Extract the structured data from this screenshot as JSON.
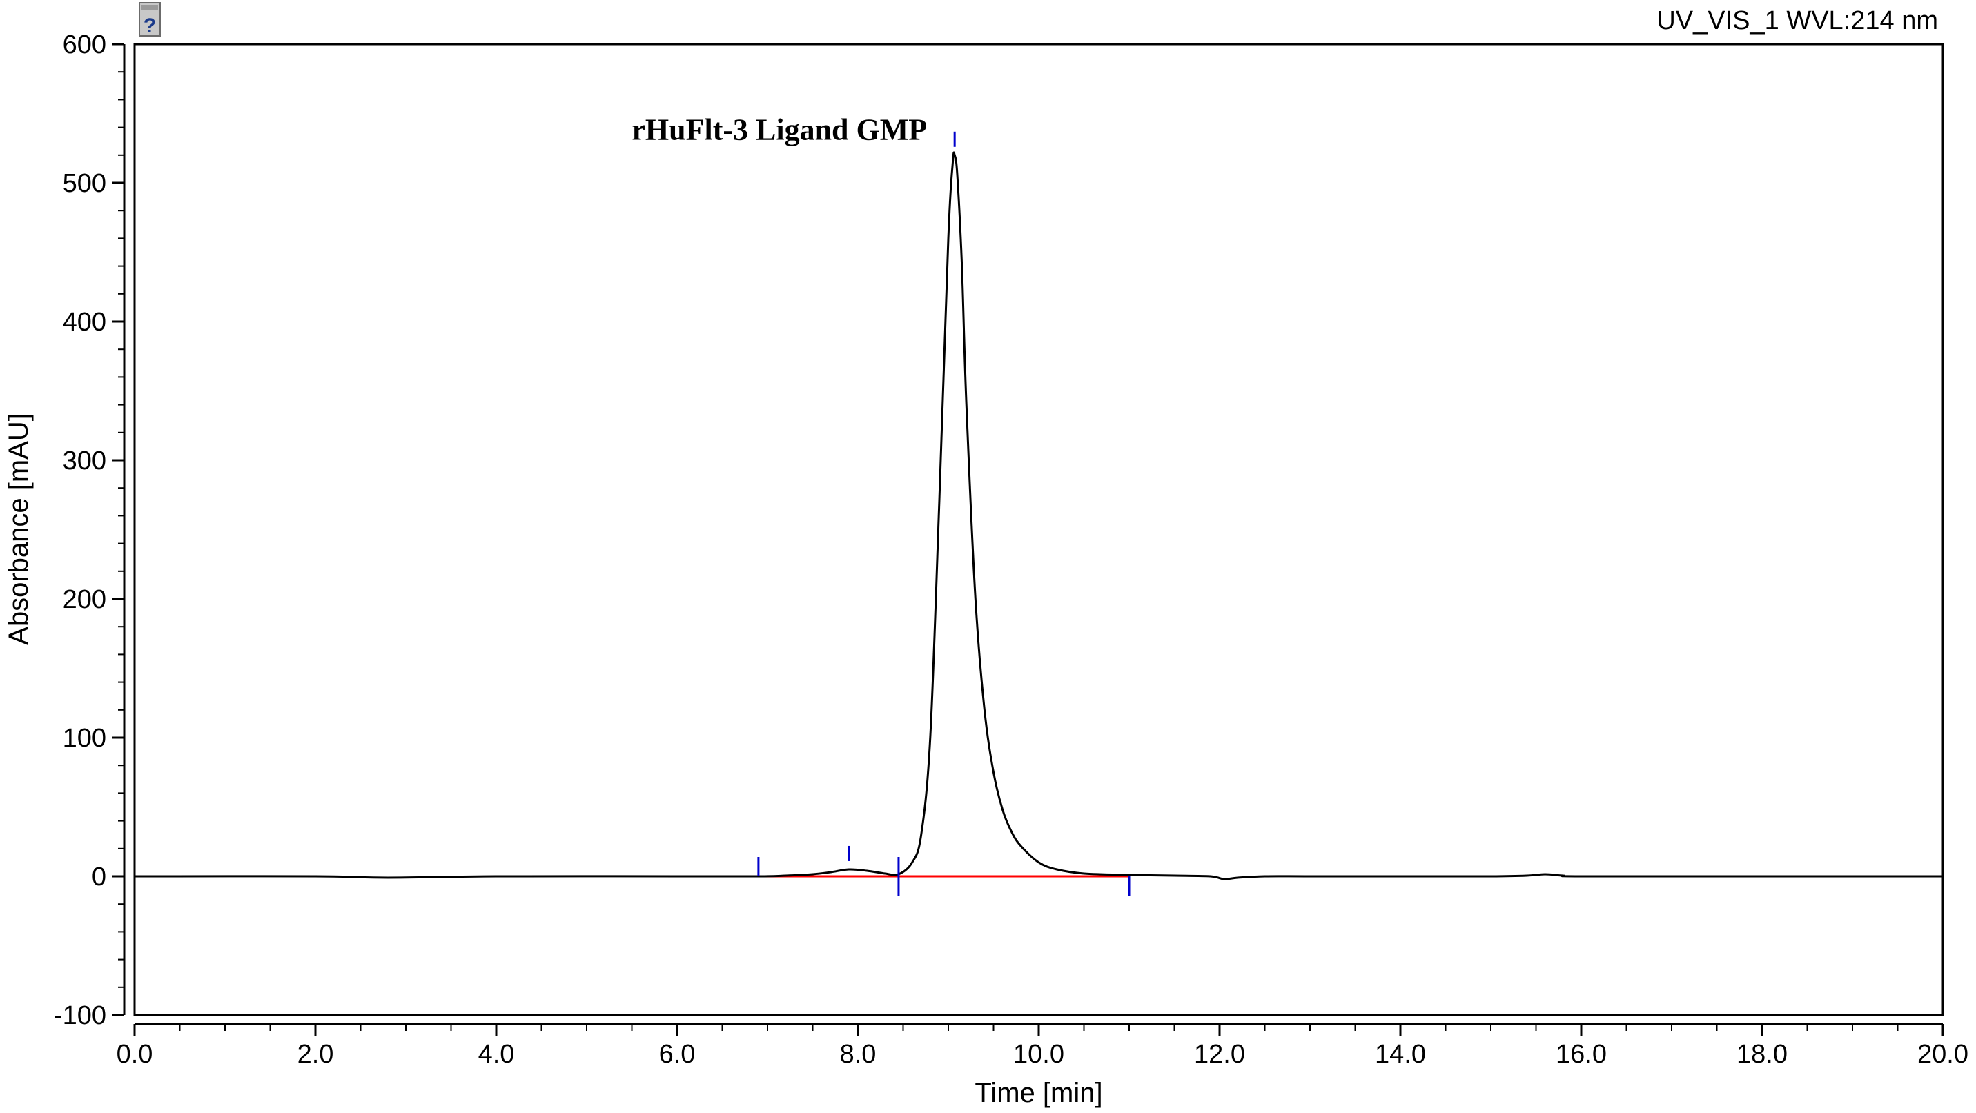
{
  "header": {
    "channel_label": "UV_VIS_1 WVL:214 nm",
    "help_icon": "help-icon"
  },
  "chart_data": {
    "type": "line",
    "title": "",
    "xlabel": "Time [min]",
    "ylabel": "Absorbance [mAU]",
    "xlim": [
      0.0,
      20.0
    ],
    "ylim": [
      -100,
      600
    ],
    "x_ticks": [
      "0.0",
      "2.0",
      "4.0",
      "6.0",
      "8.0",
      "10.0",
      "12.0",
      "14.0",
      "16.0",
      "18.0",
      "20.0"
    ],
    "y_ticks": [
      "-100",
      "0",
      "100",
      "200",
      "300",
      "400",
      "500",
      "600"
    ],
    "grid": false,
    "colors": {
      "trace": "#000000",
      "baseline": "#ff0000",
      "markers": "#0000cc"
    },
    "annotations": [
      {
        "text": "rHuFlt-3 Ligand GMP",
        "x": 9.07,
        "y": 530
      }
    ],
    "series": [
      {
        "x": [
          0.0,
          2.0,
          2.8,
          4.0,
          6.0,
          6.9,
          7.2,
          7.5,
          7.7,
          7.9,
          8.1,
          8.3,
          8.45,
          8.6,
          8.7,
          8.8,
          8.9,
          9.0,
          9.05,
          9.07,
          9.1,
          9.15,
          9.2,
          9.3,
          9.4,
          9.5,
          9.6,
          9.7,
          9.8,
          10.0,
          10.2,
          10.5,
          11.0,
          11.5,
          11.9,
          12.05,
          12.2,
          12.5,
          13.0,
          14.0,
          15.0,
          15.4,
          15.6,
          15.8,
          16.0,
          18.0,
          20.0
        ],
        "y": [
          0,
          0,
          -1,
          0,
          0,
          0,
          0.5,
          1.5,
          3,
          5,
          4,
          2,
          1.5,
          10,
          30,
          100,
          270,
          460,
          515,
          520,
          505,
          440,
          340,
          200,
          120,
          75,
          48,
          32,
          22,
          10,
          5,
          2,
          1,
          0.5,
          0,
          -2,
          -1,
          0,
          0,
          0,
          0,
          0.5,
          1.5,
          0.5,
          0,
          0,
          0
        ]
      }
    ],
    "baselines": [
      {
        "x": [
          6.9,
          8.45
        ]
      },
      {
        "x": [
          8.45,
          11.0
        ]
      }
    ],
    "peak_markers": [
      {
        "x": 6.9,
        "label": "peak start"
      },
      {
        "x": 7.9,
        "label": "peak apex"
      },
      {
        "x": 8.45,
        "label": "peak boundary"
      },
      {
        "x": 9.07,
        "label": "peak apex"
      },
      {
        "x": 11.0,
        "label": "peak end"
      }
    ]
  }
}
